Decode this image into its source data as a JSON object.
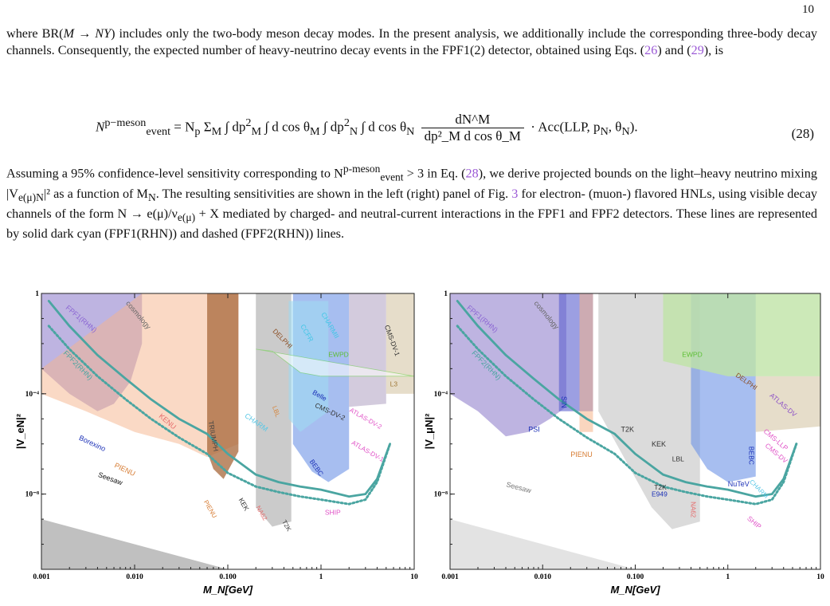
{
  "page_number": "10",
  "paragraph1": {
    "t1": "where BR(",
    "t1m": "M → NY",
    "t2": ") includes only the two-body meson decay modes. In the present analysis, we additionally include the corresponding three-body decay channels. Consequently, the expected number of heavy-neutrino decay events in the FPF1(2) detector, obtained using Eqs. (",
    "ref_a": "26",
    "t3": ") and (",
    "ref_b": "29",
    "t4": "), is"
  },
  "equation": {
    "lhs": "N",
    "lhs_sup": "p−meson",
    "lhs_sub": "event",
    "eq": " = N",
    "np_sub": "p",
    "sum_text": " Σ",
    "sum_sub": "M",
    "int1": " ∫ dp",
    "int1_sup": "2",
    "int1_sub": "M",
    "int2": " ∫ d cos θ",
    "int2_sub": "M",
    "int3": " ∫ dp",
    "int3_sup": "2",
    "int3_sub": "N",
    "int4": " ∫ d cos θ",
    "int4_sub": "N",
    "frac_num": "dN^M",
    "frac_den": "dp²_M d cos θ_M",
    "tail": " · Acc(LLP, p",
    "tail_sub1": "N",
    "tail_mid": ", θ",
    "tail_sub2": "N",
    "tail_end": ").",
    "number": "(28)"
  },
  "paragraph2": {
    "t1": "Assuming a 95% confidence-level sensitivity corresponding to N",
    "t1_sup": "p-meson",
    "t1_sub": "event",
    "t2": " > 3 in Eq. (",
    "ref_a": "28",
    "t3": "), we derive projected bounds on the light–heavy neutrino mixing |V",
    "t3_sub": "e(μ)N",
    "t4": "|² as a function of M",
    "t4_sub": "N",
    "t5": ". The resulting sensitivities are shown in the left (right) panel of Fig. ",
    "ref_b": "3",
    "t6": " for electron- (muon-) flavored HNLs, using visible decay channels of the form N → e(μ)/ν",
    "t6_sub": "e(μ)",
    "t7": " + X mediated by charged- and neutral-current interactions in the FPF1 and FPF2 detectors. These lines are represented by solid dark cyan (FPF1(RHN)) and dashed (FPF2(RHN)) lines."
  },
  "chart_data": [
    {
      "type": "area",
      "panel": "left",
      "xlabel": "M_N[GeV]",
      "ylabel": "|V_eN|²",
      "x_scale": "log",
      "y_scale": "log",
      "xlim": [
        0.001,
        10
      ],
      "ylim": [
        1e-11,
        1
      ],
      "x_ticks": [
        "0.001",
        "0.010",
        "0.100",
        "1",
        "10"
      ],
      "y_ticks": [
        "1",
        "10⁻⁴",
        "10⁻⁸"
      ],
      "grid": false,
      "labels": [
        "FPF1(RHN)",
        "FPF2(RHN)",
        "cosmology",
        "Borexino",
        "PIENU",
        "KENU",
        "TRIUMPH",
        "CHARM",
        "LBL",
        "Belle",
        "CMS-DV-2",
        "BEBC",
        "ATLAS-DV-2",
        "ATLAS-DV-1",
        "CMS-DV-1",
        "L3",
        "EWPD",
        "DELPHI",
        "CHARMII",
        "CCFR",
        "SHIP",
        "KEK",
        "T2K",
        "NA62",
        "PIENU",
        "Seesaw"
      ],
      "series": [
        {
          "name": "FPF1(RHN)",
          "x": [
            0.0012,
            0.002,
            0.004,
            0.008,
            0.015,
            0.03,
            0.06,
            0.1,
            0.2,
            0.35,
            0.6,
            1,
            2,
            3,
            4,
            5.5
          ],
          "y": [
            0.5,
            0.05,
            0.0035,
            0.0004,
            6e-05,
            1e-05,
            2.5e-06,
            4e-07,
            6e-08,
            3e-08,
            2e-08,
            1.5e-08,
            8e-09,
            1e-08,
            4e-08,
            1e-06
          ]
        },
        {
          "name": "FPF2(RHN)",
          "x": [
            0.0012,
            0.002,
            0.004,
            0.008,
            0.015,
            0.03,
            0.06,
            0.1,
            0.2,
            0.35,
            0.6,
            1,
            2,
            3,
            4,
            5.5
          ],
          "y": [
            0.05,
            0.006,
            0.0005,
            6e-05,
            1e-05,
            1.8e-06,
            4e-07,
            7e-08,
            2e-08,
            1.2e-08,
            8e-09,
            6e-09,
            4e-09,
            6e-09,
            3e-08,
            1e-06
          ]
        },
        {
          "name": "Seesaw",
          "x": [
            0.001,
            10
          ],
          "y": [
            1e-09,
            1e-13
          ]
        }
      ],
      "colors": {
        "fpf": "#4aa5a1",
        "peach": "#f5b48b",
        "purple": "#8877c9",
        "blue": "#6d93e6",
        "gray": "#b9b9b9",
        "brown": "#a7673a",
        "seesaw": "#b0b0b0"
      }
    },
    {
      "type": "area",
      "panel": "right",
      "xlabel": "M_N[GeV]",
      "ylabel": "|V_μN|²",
      "x_scale": "log",
      "y_scale": "log",
      "xlim": [
        0.001,
        10
      ],
      "ylim": [
        1e-11,
        1
      ],
      "x_ticks": [
        "0.001",
        "0.010",
        "0.100",
        "1",
        "10"
      ],
      "y_ticks": [
        "1",
        "10⁻⁴",
        "10⁻⁸"
      ],
      "grid": false,
      "labels": [
        "FPF1(RHN)",
        "FPF2(RHN)",
        "cosmology",
        "SIN",
        "PSI",
        "PIENU",
        "T2K",
        "KEK",
        "LBL",
        "EWPD",
        "DELPHI",
        "ATLAS-DV",
        "CMS-LLP",
        "CMS-DV",
        "BEBC",
        "NuTeV",
        "CHARM",
        "SHIP",
        "E949",
        "T2K",
        "NA62",
        "Seesaw"
      ],
      "series": [
        {
          "name": "FPF1(RHN)",
          "x": [
            0.0012,
            0.002,
            0.004,
            0.008,
            0.015,
            0.03,
            0.06,
            0.1,
            0.2,
            0.35,
            0.6,
            1,
            2,
            3,
            4,
            5.5
          ],
          "y": [
            0.5,
            0.05,
            0.0035,
            0.0004,
            6e-05,
            1e-05,
            2.5e-06,
            4e-07,
            6e-08,
            3e-08,
            2e-08,
            1.5e-08,
            8e-09,
            1e-08,
            4e-08,
            1e-06
          ]
        },
        {
          "name": "FPF2(RHN)",
          "x": [
            0.0012,
            0.002,
            0.004,
            0.008,
            0.015,
            0.03,
            0.06,
            0.1,
            0.2,
            0.35,
            0.6,
            1,
            2,
            3,
            4,
            5.5
          ],
          "y": [
            0.05,
            0.006,
            0.0005,
            6e-05,
            1e-05,
            1.8e-06,
            4e-07,
            7e-08,
            2e-08,
            1.2e-08,
            8e-09,
            6e-09,
            4e-09,
            6e-09,
            3e-08,
            1e-06
          ]
        },
        {
          "name": "Seesaw",
          "x": [
            0.001,
            10
          ],
          "y": [
            1e-09,
            1e-13
          ]
        }
      ],
      "colors": {
        "fpf": "#4aa5a1",
        "peach": "#f5b48b",
        "purple": "#8877c9",
        "blue": "#6d93e6",
        "gray": "#cfcfcf",
        "green": "#bfe3a6",
        "seesaw": "#dcdcdc"
      }
    }
  ]
}
